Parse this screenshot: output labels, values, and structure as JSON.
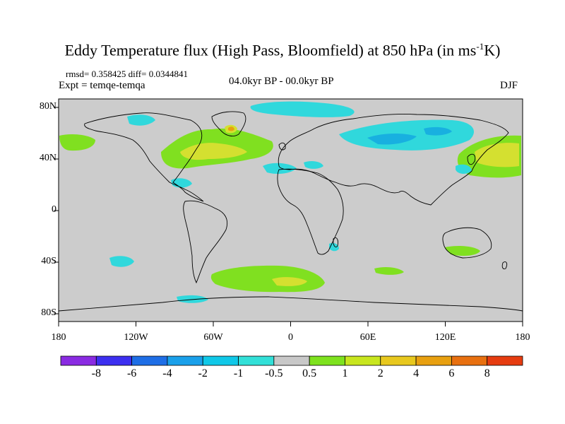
{
  "title": {
    "main": "Eddy Temperature flux (High Pass, Bloomfield) at 850 hPa (in ms",
    "sup": "-1",
    "unit_end": "K)"
  },
  "stats": "rmsd= 0.358425 diff= 0.0344841",
  "expt": "Expt = temqe-temqa",
  "period": "04.0kyr BP - 00.0kyr BP",
  "season": "DJF",
  "lat_labels": [
    "80N",
    "40N",
    "0",
    "40S",
    "80S"
  ],
  "lon_labels": [
    "180",
    "120W",
    "60W",
    "0",
    "60E",
    "120E",
    "180"
  ],
  "colorbar": {
    "labels": [
      "-8",
      "-6",
      "-4",
      "-2",
      "-1",
      "-0.5",
      "0.5",
      "1",
      "2",
      "4",
      "6",
      "8"
    ],
    "colors": [
      "#8a2be2",
      "#3c2ff0",
      "#1e6ee6",
      "#1aa0ea",
      "#10c8e8",
      "#32e0d8",
      "#c8c8c8",
      "#7ee21e",
      "#c8e61e",
      "#e8c81e",
      "#e8a010",
      "#e87010",
      "#e63c10"
    ]
  },
  "colors": {
    "land_bg": "#cccccc",
    "positive": "#80e020",
    "strong_positive": "#d4e030",
    "negative": "#30d8dc",
    "strong_negative": "#18b0e0"
  }
}
